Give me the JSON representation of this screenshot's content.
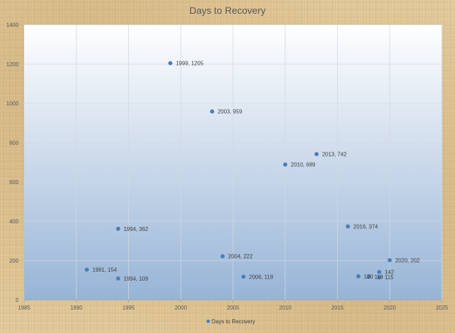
{
  "chart_data": {
    "type": "scatter",
    "title": "Days to Recovery",
    "xlabel": "",
    "ylabel": "",
    "xlim": [
      1985,
      2025
    ],
    "ylim": [
      0,
      1400
    ],
    "xticks": [
      1985,
      1990,
      1995,
      2000,
      2005,
      2010,
      2015,
      2020,
      2025
    ],
    "yticks": [
      0,
      200,
      400,
      600,
      800,
      1000,
      1200,
      1400
    ],
    "grid": true,
    "legend_position": "bottom",
    "series": [
      {
        "name": "Days to Recovery",
        "color": "#4a7ebb",
        "points": [
          {
            "x": 1991,
            "y": 154,
            "label": "1991, 154"
          },
          {
            "x": 1994,
            "y": 109,
            "label": "1994, 109"
          },
          {
            "x": 1994,
            "y": 362,
            "label": "1994, 362"
          },
          {
            "x": 1999,
            "y": 1205,
            "label": "1999, 1205"
          },
          {
            "x": 2003,
            "y": 959,
            "label": "2003, 959"
          },
          {
            "x": 2004,
            "y": 222,
            "label": "2004, 222"
          },
          {
            "x": 2006,
            "y": 118,
            "label": "2006, 118"
          },
          {
            "x": 2010,
            "y": 689,
            "label": "2010, 689"
          },
          {
            "x": 2013,
            "y": 742,
            "label": "2013, 742"
          },
          {
            "x": 2016,
            "y": 374,
            "label": "2016, 374"
          },
          {
            "x": 2017,
            "y": 120,
            "label": "120"
          },
          {
            "x": 2018,
            "y": 118,
            "label": "118"
          },
          {
            "x": 2019,
            "y": 142,
            "label": "142"
          },
          {
            "x": 2019,
            "y": 115,
            "label": "115"
          },
          {
            "x": 2020,
            "y": 202,
            "label": "2020, 202"
          }
        ]
      }
    ]
  }
}
